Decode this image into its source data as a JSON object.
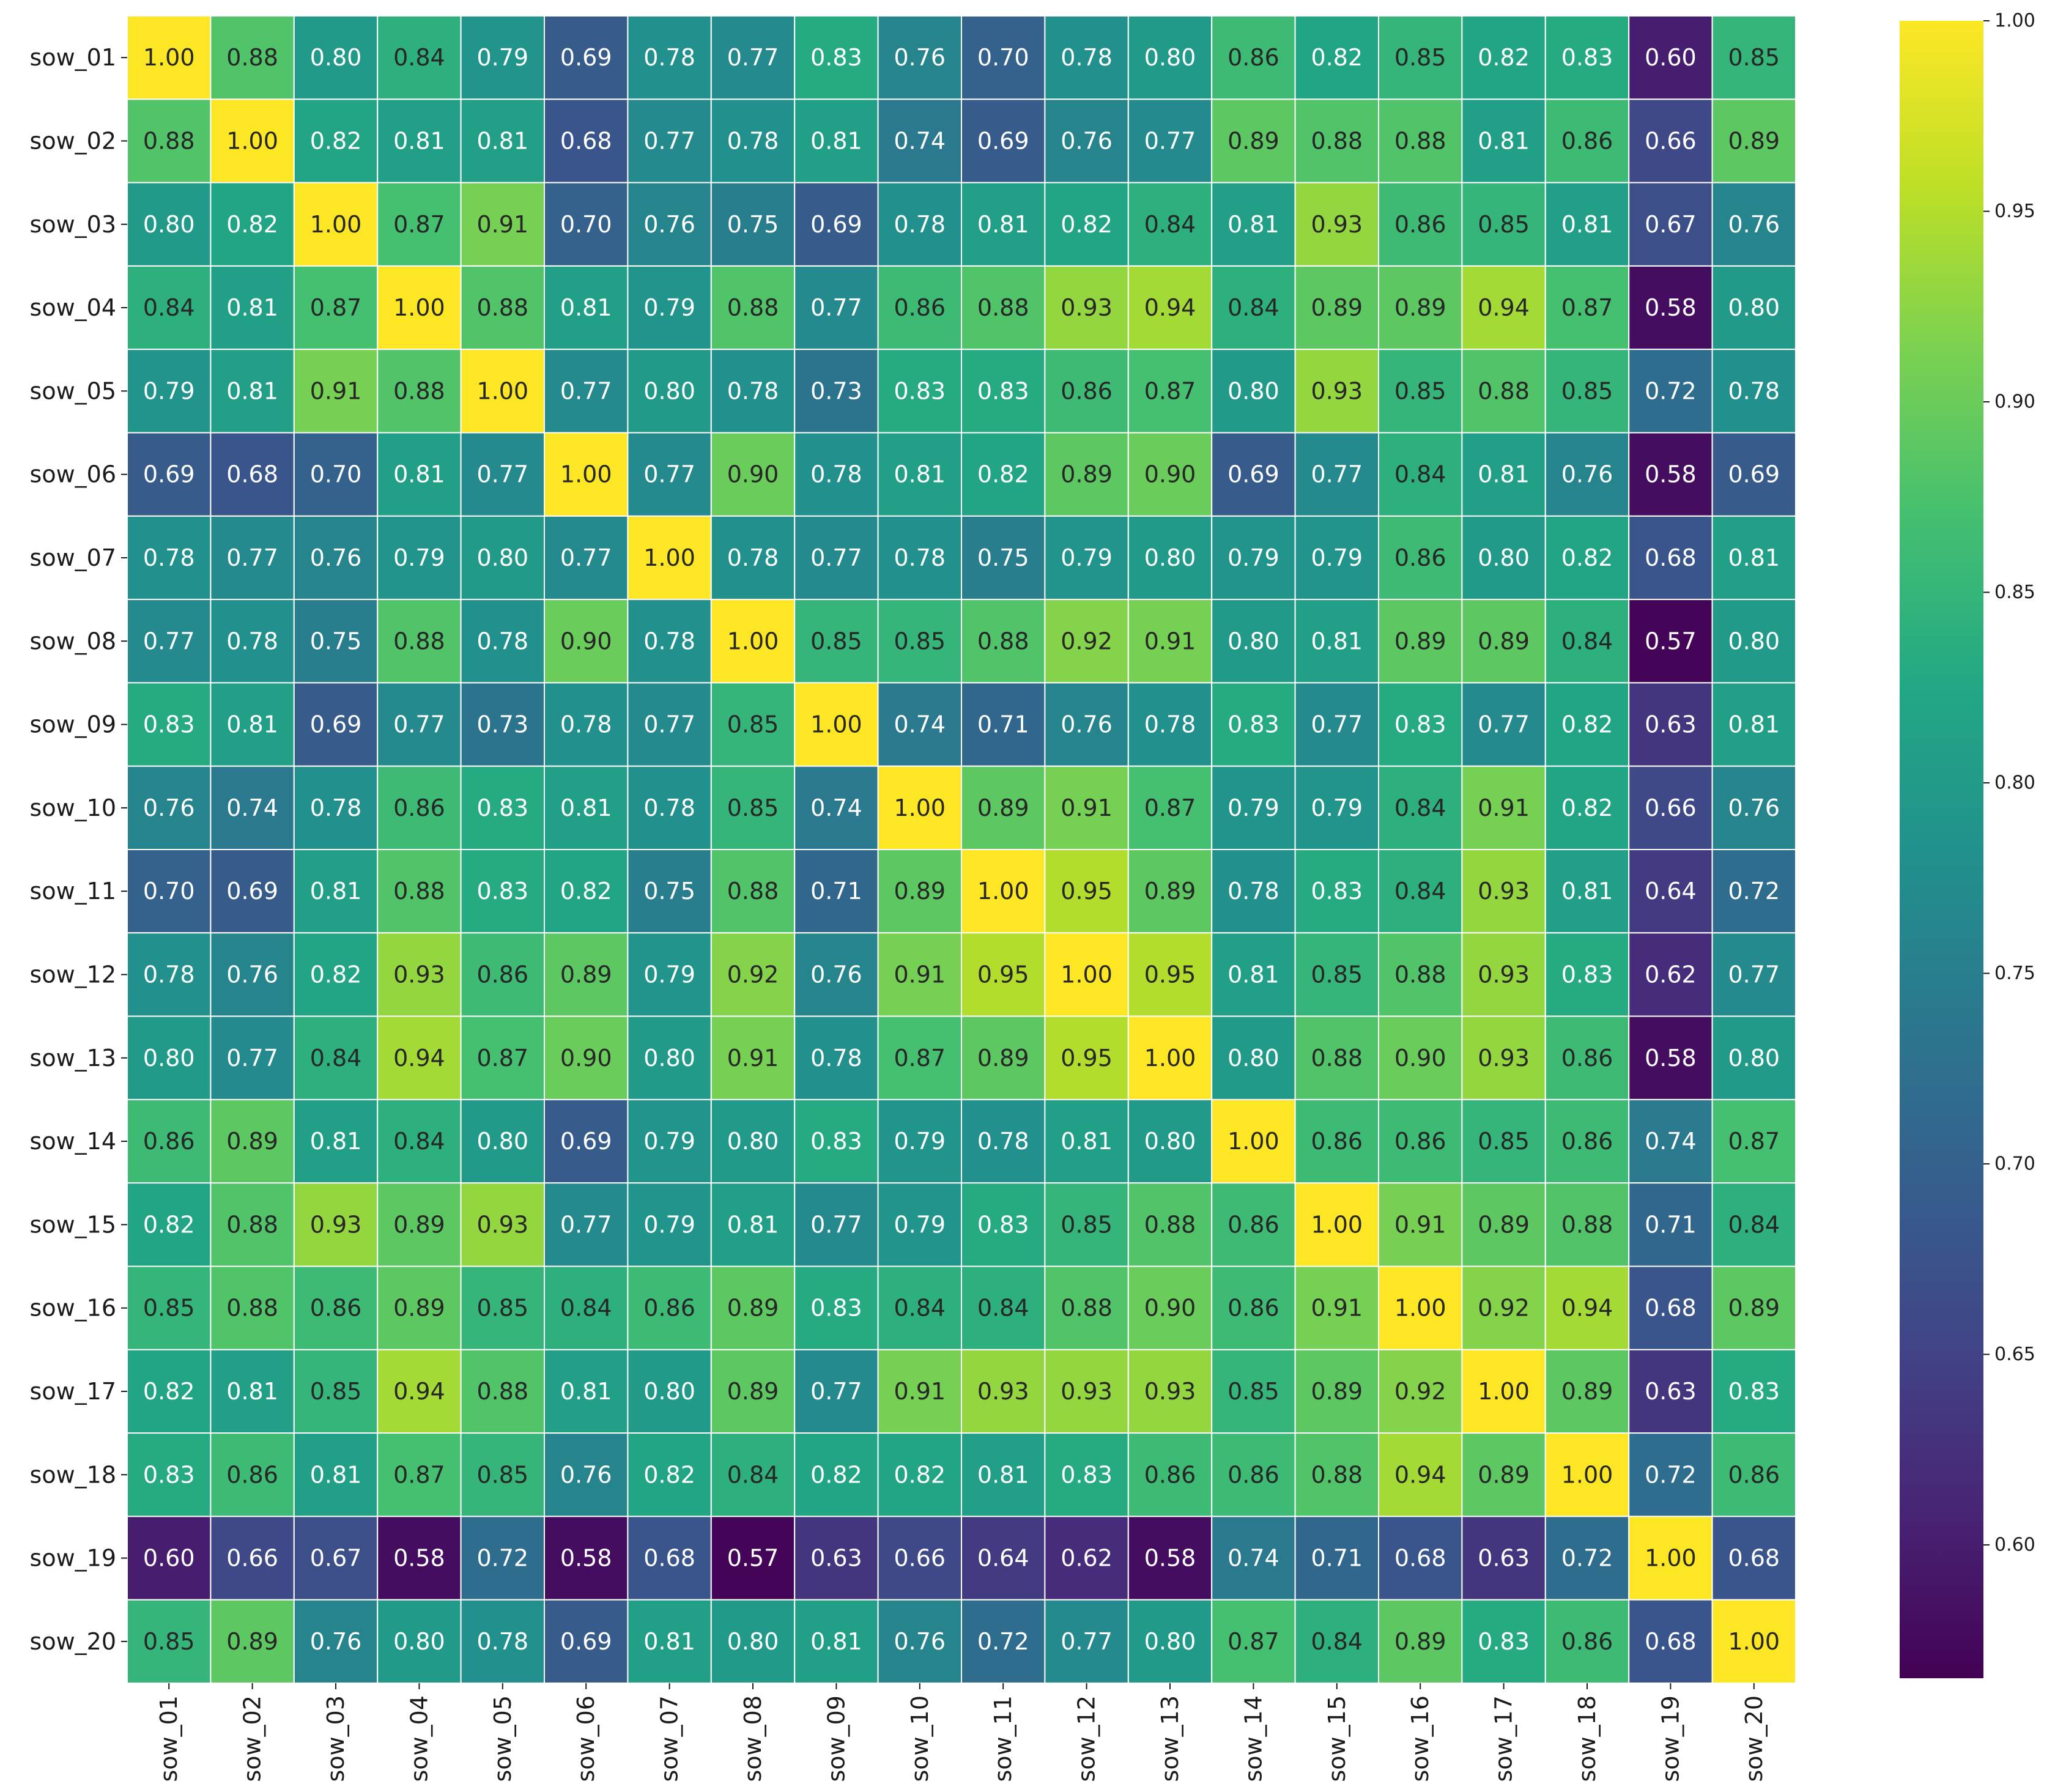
{
  "chart_data": {
    "type": "heatmap",
    "colormap": "viridis",
    "annotation_format": "0.00",
    "row_labels": [
      "sow_01",
      "sow_02",
      "sow_03",
      "sow_04",
      "sow_05",
      "sow_06",
      "sow_07",
      "sow_08",
      "sow_09",
      "sow_10",
      "sow_11",
      "sow_12",
      "sow_13",
      "sow_14",
      "sow_15",
      "sow_16",
      "sow_17",
      "sow_18",
      "sow_19",
      "sow_20"
    ],
    "col_labels": [
      "sow_01",
      "sow_02",
      "sow_03",
      "sow_04",
      "sow_05",
      "sow_06",
      "sow_07",
      "sow_08",
      "sow_09",
      "sow_10",
      "sow_11",
      "sow_12",
      "sow_13",
      "sow_14",
      "sow_15",
      "sow_16",
      "sow_17",
      "sow_18",
      "sow_19",
      "sow_20"
    ],
    "values": [
      [
        1.0,
        0.88,
        0.8,
        0.84,
        0.79,
        0.69,
        0.78,
        0.77,
        0.83,
        0.76,
        0.7,
        0.78,
        0.8,
        0.86,
        0.82,
        0.85,
        0.82,
        0.83,
        0.6,
        0.85
      ],
      [
        0.88,
        1.0,
        0.82,
        0.81,
        0.81,
        0.68,
        0.77,
        0.78,
        0.81,
        0.74,
        0.69,
        0.76,
        0.77,
        0.89,
        0.88,
        0.88,
        0.81,
        0.86,
        0.66,
        0.89
      ],
      [
        0.8,
        0.82,
        1.0,
        0.87,
        0.91,
        0.7,
        0.76,
        0.75,
        0.69,
        0.78,
        0.81,
        0.82,
        0.84,
        0.81,
        0.93,
        0.86,
        0.85,
        0.81,
        0.67,
        0.76
      ],
      [
        0.84,
        0.81,
        0.87,
        1.0,
        0.88,
        0.81,
        0.79,
        0.88,
        0.77,
        0.86,
        0.88,
        0.93,
        0.94,
        0.84,
        0.89,
        0.89,
        0.94,
        0.87,
        0.58,
        0.8
      ],
      [
        0.79,
        0.81,
        0.91,
        0.88,
        1.0,
        0.77,
        0.8,
        0.78,
        0.73,
        0.83,
        0.83,
        0.86,
        0.87,
        0.8,
        0.93,
        0.85,
        0.88,
        0.85,
        0.72,
        0.78
      ],
      [
        0.69,
        0.68,
        0.7,
        0.81,
        0.77,
        1.0,
        0.77,
        0.9,
        0.78,
        0.81,
        0.82,
        0.89,
        0.9,
        0.69,
        0.77,
        0.84,
        0.81,
        0.76,
        0.58,
        0.69
      ],
      [
        0.78,
        0.77,
        0.76,
        0.79,
        0.8,
        0.77,
        1.0,
        0.78,
        0.77,
        0.78,
        0.75,
        0.79,
        0.8,
        0.79,
        0.79,
        0.86,
        0.8,
        0.82,
        0.68,
        0.81
      ],
      [
        0.77,
        0.78,
        0.75,
        0.88,
        0.78,
        0.9,
        0.78,
        1.0,
        0.85,
        0.85,
        0.88,
        0.92,
        0.91,
        0.8,
        0.81,
        0.89,
        0.89,
        0.84,
        0.57,
        0.8
      ],
      [
        0.83,
        0.81,
        0.69,
        0.77,
        0.73,
        0.78,
        0.77,
        0.85,
        1.0,
        0.74,
        0.71,
        0.76,
        0.78,
        0.83,
        0.77,
        0.83,
        0.77,
        0.82,
        0.63,
        0.81
      ],
      [
        0.76,
        0.74,
        0.78,
        0.86,
        0.83,
        0.81,
        0.78,
        0.85,
        0.74,
        1.0,
        0.89,
        0.91,
        0.87,
        0.79,
        0.79,
        0.84,
        0.91,
        0.82,
        0.66,
        0.76
      ],
      [
        0.7,
        0.69,
        0.81,
        0.88,
        0.83,
        0.82,
        0.75,
        0.88,
        0.71,
        0.89,
        1.0,
        0.95,
        0.89,
        0.78,
        0.83,
        0.84,
        0.93,
        0.81,
        0.64,
        0.72
      ],
      [
        0.78,
        0.76,
        0.82,
        0.93,
        0.86,
        0.89,
        0.79,
        0.92,
        0.76,
        0.91,
        0.95,
        1.0,
        0.95,
        0.81,
        0.85,
        0.88,
        0.93,
        0.83,
        0.62,
        0.77
      ],
      [
        0.8,
        0.77,
        0.84,
        0.94,
        0.87,
        0.9,
        0.8,
        0.91,
        0.78,
        0.87,
        0.89,
        0.95,
        1.0,
        0.8,
        0.88,
        0.9,
        0.93,
        0.86,
        0.58,
        0.8
      ],
      [
        0.86,
        0.89,
        0.81,
        0.84,
        0.8,
        0.69,
        0.79,
        0.8,
        0.83,
        0.79,
        0.78,
        0.81,
        0.8,
        1.0,
        0.86,
        0.86,
        0.85,
        0.86,
        0.74,
        0.87
      ],
      [
        0.82,
        0.88,
        0.93,
        0.89,
        0.93,
        0.77,
        0.79,
        0.81,
        0.77,
        0.79,
        0.83,
        0.85,
        0.88,
        0.86,
        1.0,
        0.91,
        0.89,
        0.88,
        0.71,
        0.84
      ],
      [
        0.85,
        0.88,
        0.86,
        0.89,
        0.85,
        0.84,
        0.86,
        0.89,
        0.83,
        0.84,
        0.84,
        0.88,
        0.9,
        0.86,
        0.91,
        1.0,
        0.92,
        0.94,
        0.68,
        0.89
      ],
      [
        0.82,
        0.81,
        0.85,
        0.94,
        0.88,
        0.81,
        0.8,
        0.89,
        0.77,
        0.91,
        0.93,
        0.93,
        0.93,
        0.85,
        0.89,
        0.92,
        1.0,
        0.89,
        0.63,
        0.83
      ],
      [
        0.83,
        0.86,
        0.81,
        0.87,
        0.85,
        0.76,
        0.82,
        0.84,
        0.82,
        0.82,
        0.81,
        0.83,
        0.86,
        0.86,
        0.88,
        0.94,
        0.89,
        1.0,
        0.72,
        0.86
      ],
      [
        0.6,
        0.66,
        0.67,
        0.58,
        0.72,
        0.58,
        0.68,
        0.57,
        0.63,
        0.66,
        0.64,
        0.62,
        0.58,
        0.74,
        0.71,
        0.68,
        0.63,
        0.72,
        1.0,
        0.68
      ],
      [
        0.85,
        0.89,
        0.76,
        0.8,
        0.78,
        0.69,
        0.81,
        0.8,
        0.81,
        0.76,
        0.72,
        0.77,
        0.8,
        0.87,
        0.84,
        0.89,
        0.83,
        0.86,
        0.68,
        1.0
      ]
    ],
    "colorbar": {
      "vmin": 0.565,
      "vmax": 1.0,
      "ticks": [
        0.6,
        0.65,
        0.7,
        0.75,
        0.8,
        0.85,
        0.9,
        0.95,
        1.0
      ],
      "tick_labels": [
        "0.60",
        "0.65",
        "0.70",
        "0.75",
        "0.80",
        "0.85",
        "0.90",
        "0.95",
        "1.00"
      ]
    }
  }
}
